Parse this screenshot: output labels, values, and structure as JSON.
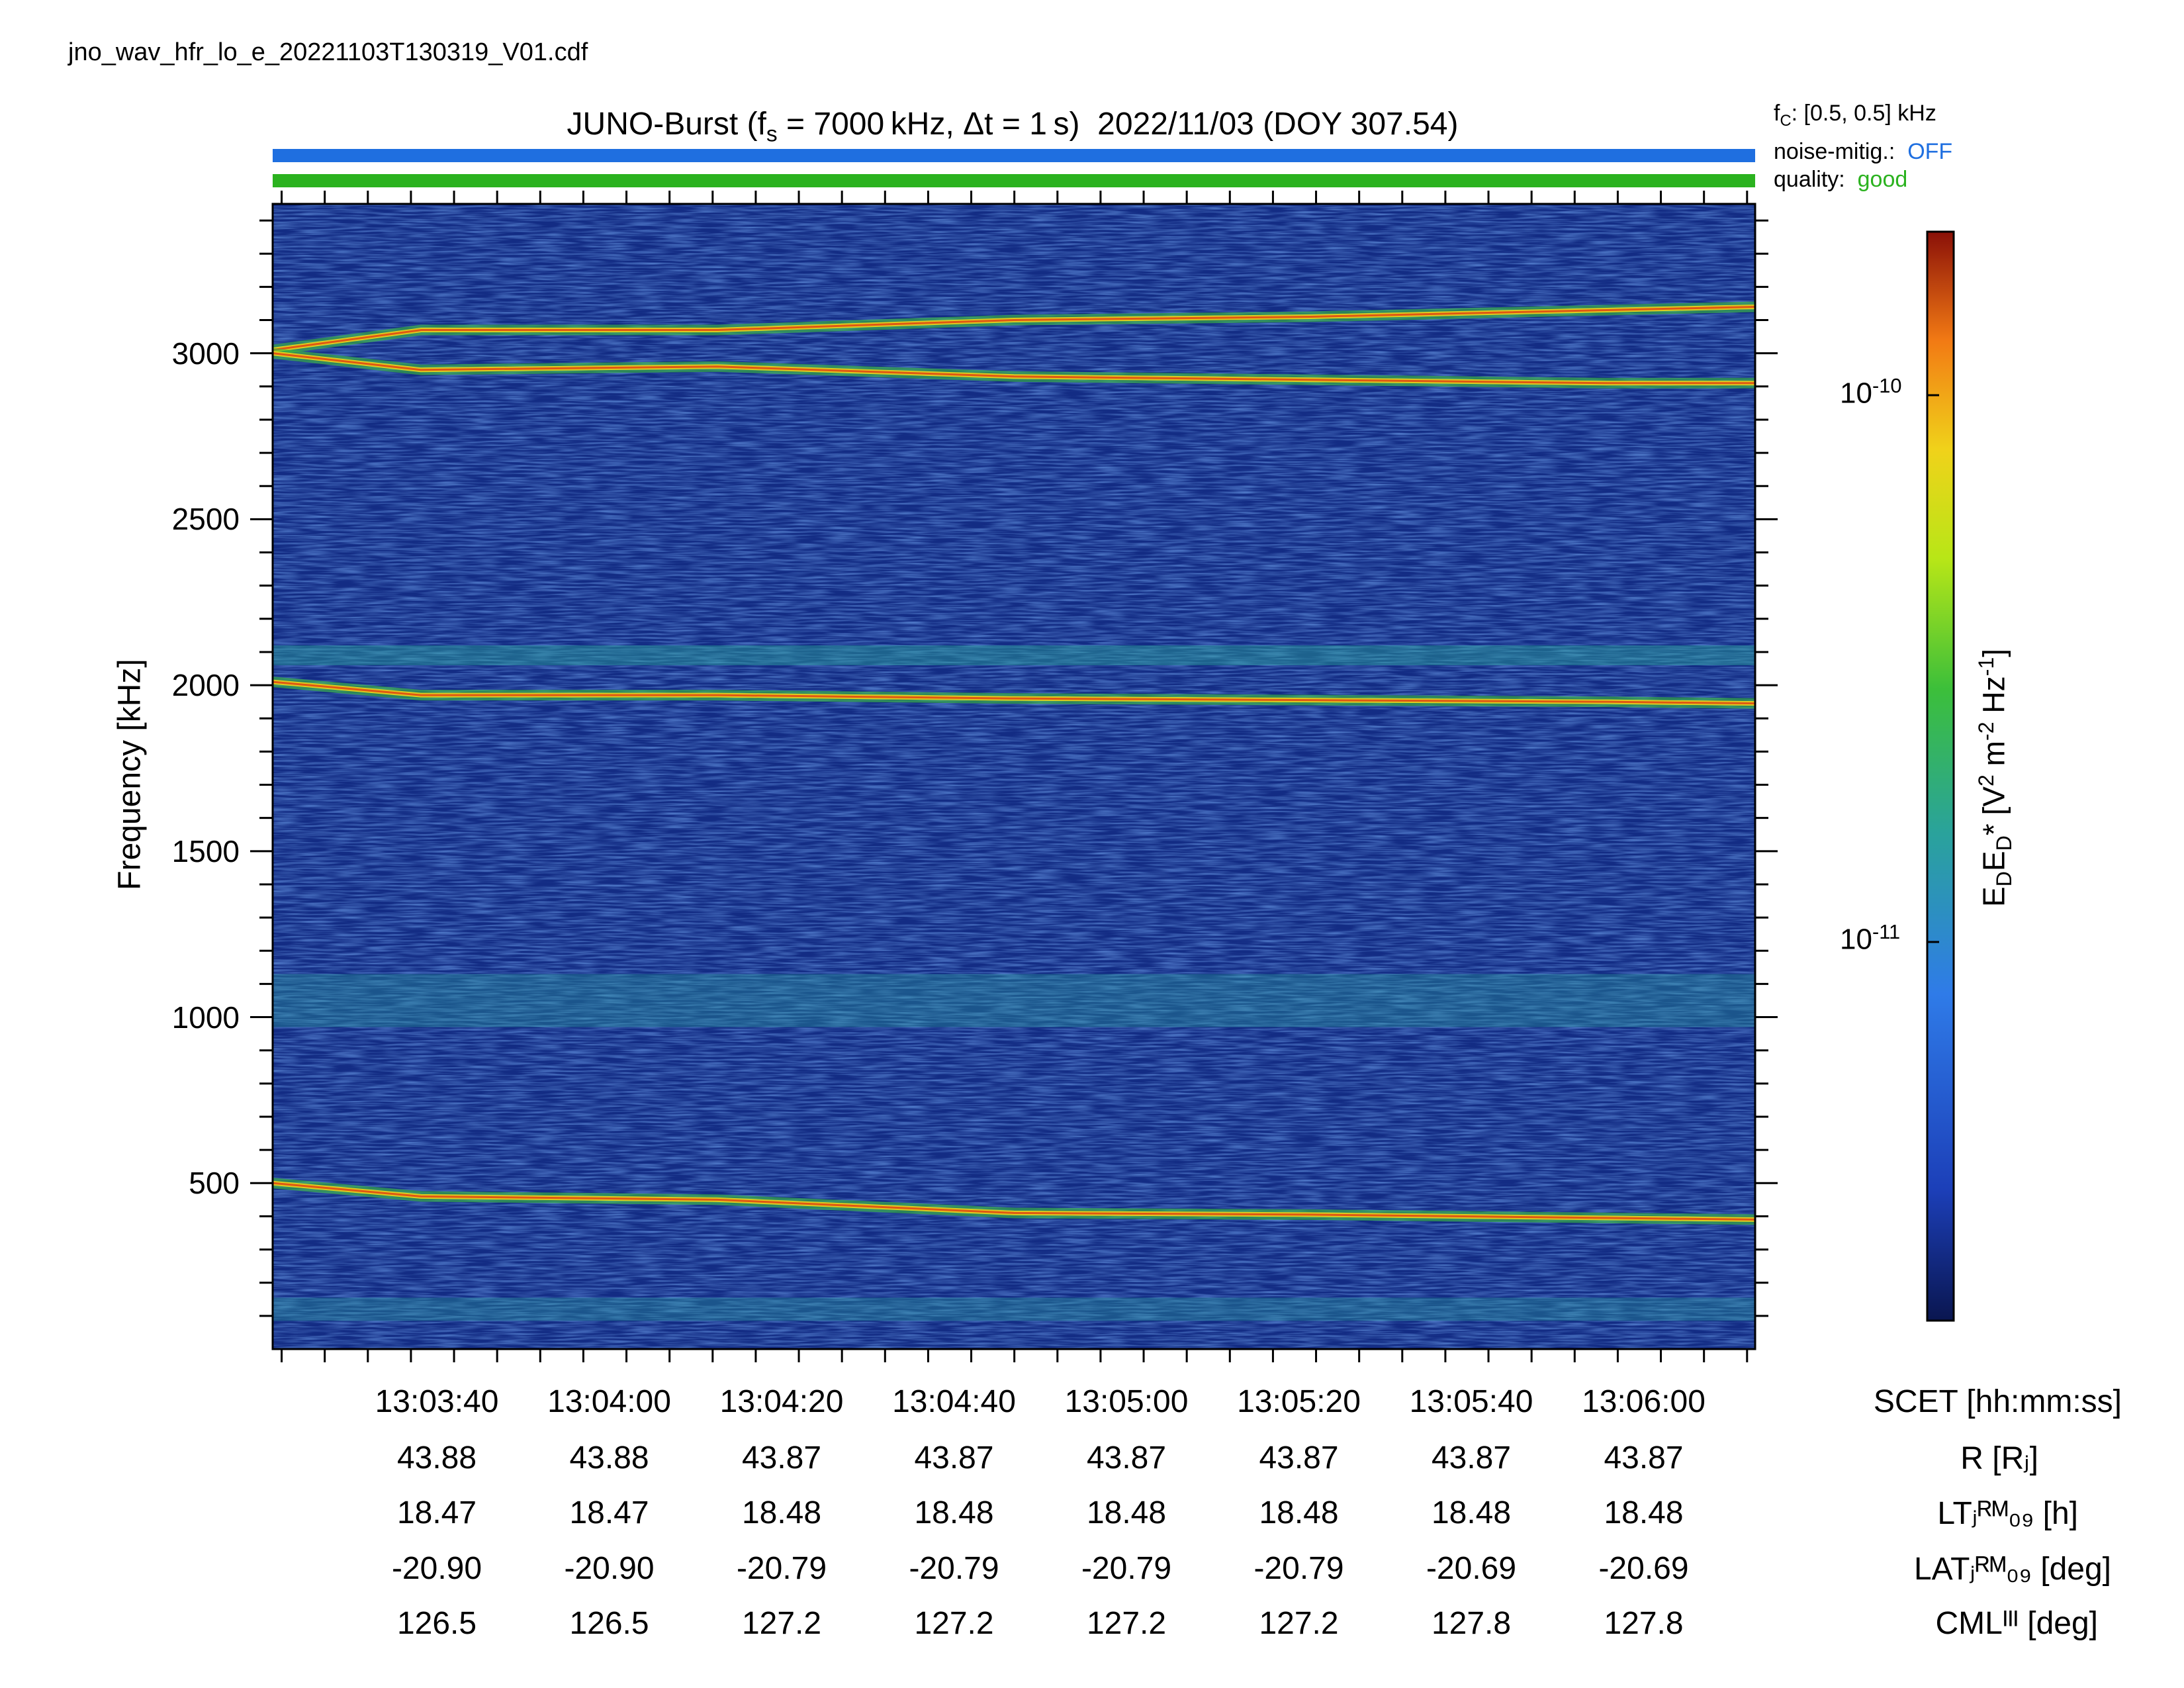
{
  "filename": "jno_wav_hfr_lo_e_20221103T130319_V01.cdf",
  "title": "JUNO-Burst (fₛ = 7000 kHz, Δt = 1 s)  2022/11/03 (DOY 307.54)",
  "fc": "fᴄ: [0.5, 0.5] kHz",
  "noise_label": "noise-mitig.:",
  "noise_value": "OFF",
  "quality_label": "quality:",
  "quality_value": "good",
  "colors": {
    "noise_bar": "#1f6fe0",
    "quality_bar": "#2bb21f"
  },
  "colorbar": {
    "label": "EᴅEᴅ* [V² m⁻² Hz⁻¹]",
    "tick_1": "10⁻¹⁰",
    "tick_2": "10⁻¹¹",
    "colormap": "jet-like (dark blue to dark red)",
    "scale": "log"
  },
  "chart_data": {
    "type": "heatmap",
    "ylabel": "Frequency [kHz]",
    "ylim": [
      0,
      3450
    ],
    "yticks": [
      500,
      1000,
      1500,
      2000,
      2500,
      3000
    ],
    "xticks": [
      "13:03:40",
      "13:04:00",
      "13:04:20",
      "13:04:40",
      "13:05:00",
      "13:05:20",
      "13:05:40",
      "13:06:00"
    ],
    "features": [
      {
        "name_hidden": true,
        "x": [
          0,
          0.1,
          0.3,
          0.5,
          0.7,
          0.9,
          1.0
        ],
        "y": [
          3010,
          3070,
          3070,
          3100,
          3110,
          3130,
          3140
        ]
      },
      {
        "name_hidden": true,
        "x": [
          0,
          0.1,
          0.3,
          0.5,
          0.7,
          0.9,
          1.0
        ],
        "y": [
          3000,
          2950,
          2960,
          2930,
          2920,
          2910,
          2910
        ]
      },
      {
        "name_hidden": true,
        "x": [
          0,
          0.1,
          0.3,
          0.5,
          0.7,
          0.9,
          1.0
        ],
        "y": [
          2010,
          1970,
          1970,
          1960,
          1955,
          1950,
          1945
        ]
      },
      {
        "name_hidden": true,
        "x": [
          0,
          0.1,
          0.3,
          0.5,
          0.7,
          0.9,
          1.0
        ],
        "y": [
          500,
          460,
          450,
          410,
          405,
          395,
          390
        ]
      }
    ]
  },
  "ephemeris": {
    "x_label": "SCET [hh:mm:ss]",
    "rows": [
      {
        "label": "R [Rⱼ]",
        "values": [
          "43.88",
          "43.88",
          "43.87",
          "43.87",
          "43.87",
          "43.87",
          "43.87",
          "43.87"
        ]
      },
      {
        "label": "LTⱼᴿᴹ₀₉ [h]",
        "values": [
          "18.47",
          "18.47",
          "18.48",
          "18.48",
          "18.48",
          "18.48",
          "18.48",
          "18.48"
        ]
      },
      {
        "label": "LATⱼᴿᴹ₀₉ [deg]",
        "values": [
          "-20.90",
          "-20.90",
          "-20.79",
          "-20.79",
          "-20.79",
          "-20.79",
          "-20.69",
          "-20.69"
        ]
      },
      {
        "label": "CMLᴵᴵᴵ [deg]",
        "values": [
          "126.5",
          "126.5",
          "127.2",
          "127.2",
          "127.2",
          "127.2",
          "127.8",
          "127.8"
        ]
      }
    ]
  }
}
